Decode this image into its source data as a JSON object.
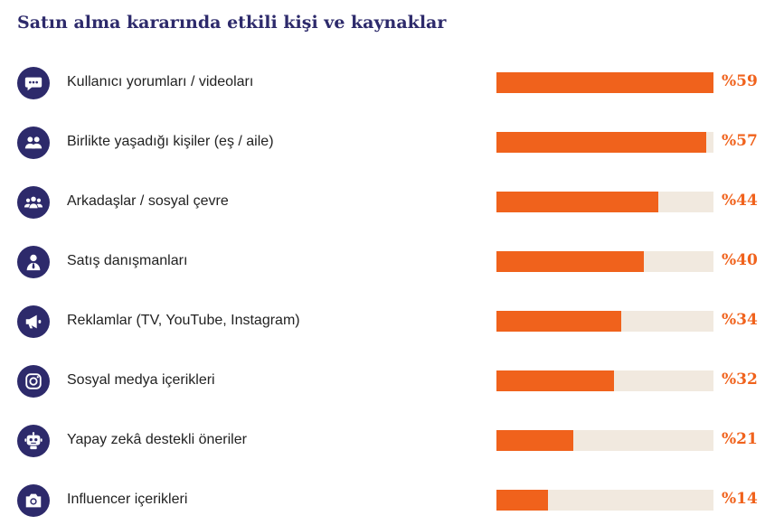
{
  "title": "Satın alma kararında etkili kişi ve kaynaklar",
  "chart_data": {
    "type": "bar",
    "orientation": "horizontal",
    "title": "Satın alma kararında etkili kişi ve kaynaklar",
    "categories": [
      "Kullanıcı yorumları / videoları",
      "Birlikte yaşadığı kişiler (eş / aile)",
      "Arkadaşlar / sosyal çevre",
      "Satış danışmanları",
      "Reklamlar (TV, YouTube, Instagram)",
      "Sosyal medya içerikleri",
      "Yapay zekâ destekli öneriler",
      "Influencer içerikleri"
    ],
    "values": [
      59,
      57,
      44,
      40,
      34,
      32,
      21,
      14
    ],
    "value_labels": [
      "%59",
      "%57",
      "%44",
      "%40",
      "%34",
      "%32",
      "%21",
      "%14"
    ],
    "xlim": [
      0,
      59
    ],
    "colors": {
      "fill": "#f0621c",
      "track": "#f1e9df",
      "icon_bg": "#2d2a6b",
      "title": "#2d2a6b"
    }
  },
  "icons": [
    "speech-bubble-icon",
    "couple-icon",
    "group-icon",
    "advisor-icon",
    "megaphone-icon",
    "instagram-icon",
    "robot-icon",
    "camera-icon"
  ]
}
